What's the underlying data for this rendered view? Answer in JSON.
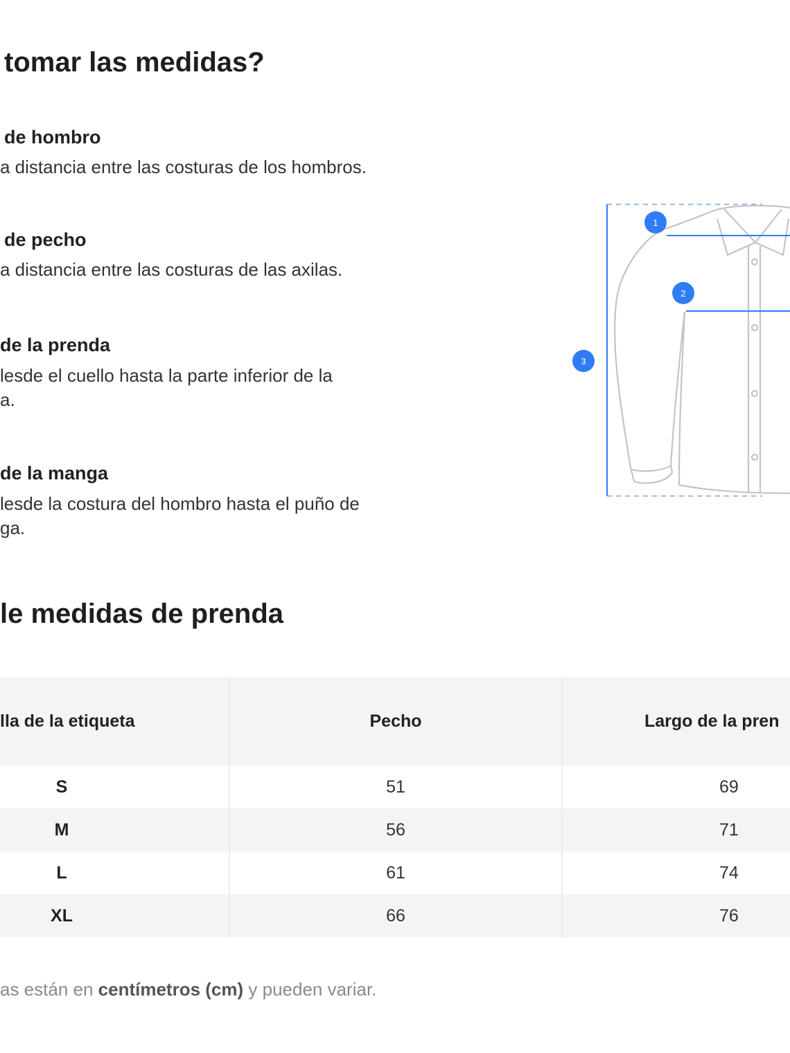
{
  "section1": {
    "title": "tomar las medidas?",
    "items": [
      {
        "label": "de hombro",
        "desc": [
          "a distancia entre las costuras de los hombros."
        ]
      },
      {
        "label": "de pecho",
        "desc": [
          "a distancia entre las costuras de las axilas."
        ]
      },
      {
        "label": "de la prenda",
        "desc": [
          "lesde el cuello hasta la parte inferior de la",
          "a."
        ]
      },
      {
        "label": "de la manga",
        "desc": [
          "lesde la costura del hombro hasta el puño de",
          "ga."
        ]
      }
    ]
  },
  "diagram": {
    "markers": [
      "1",
      "2",
      "3"
    ],
    "accent_color": "#2f7cf6",
    "outline_color": "#bdbdbd"
  },
  "section2": {
    "title": "le medidas de prenda",
    "table": {
      "headers": [
        "lla de la etiqueta",
        "Pecho",
        "Largo de la pren"
      ],
      "rows": [
        [
          "S",
          "51",
          "69"
        ],
        [
          "M",
          "56",
          "71"
        ],
        [
          "L",
          "61",
          "74"
        ],
        [
          "XL",
          "66",
          "76"
        ]
      ]
    },
    "note": {
      "pre": "as están en ",
      "bold": "centímetros (cm)",
      "post": " y pueden variar."
    }
  }
}
